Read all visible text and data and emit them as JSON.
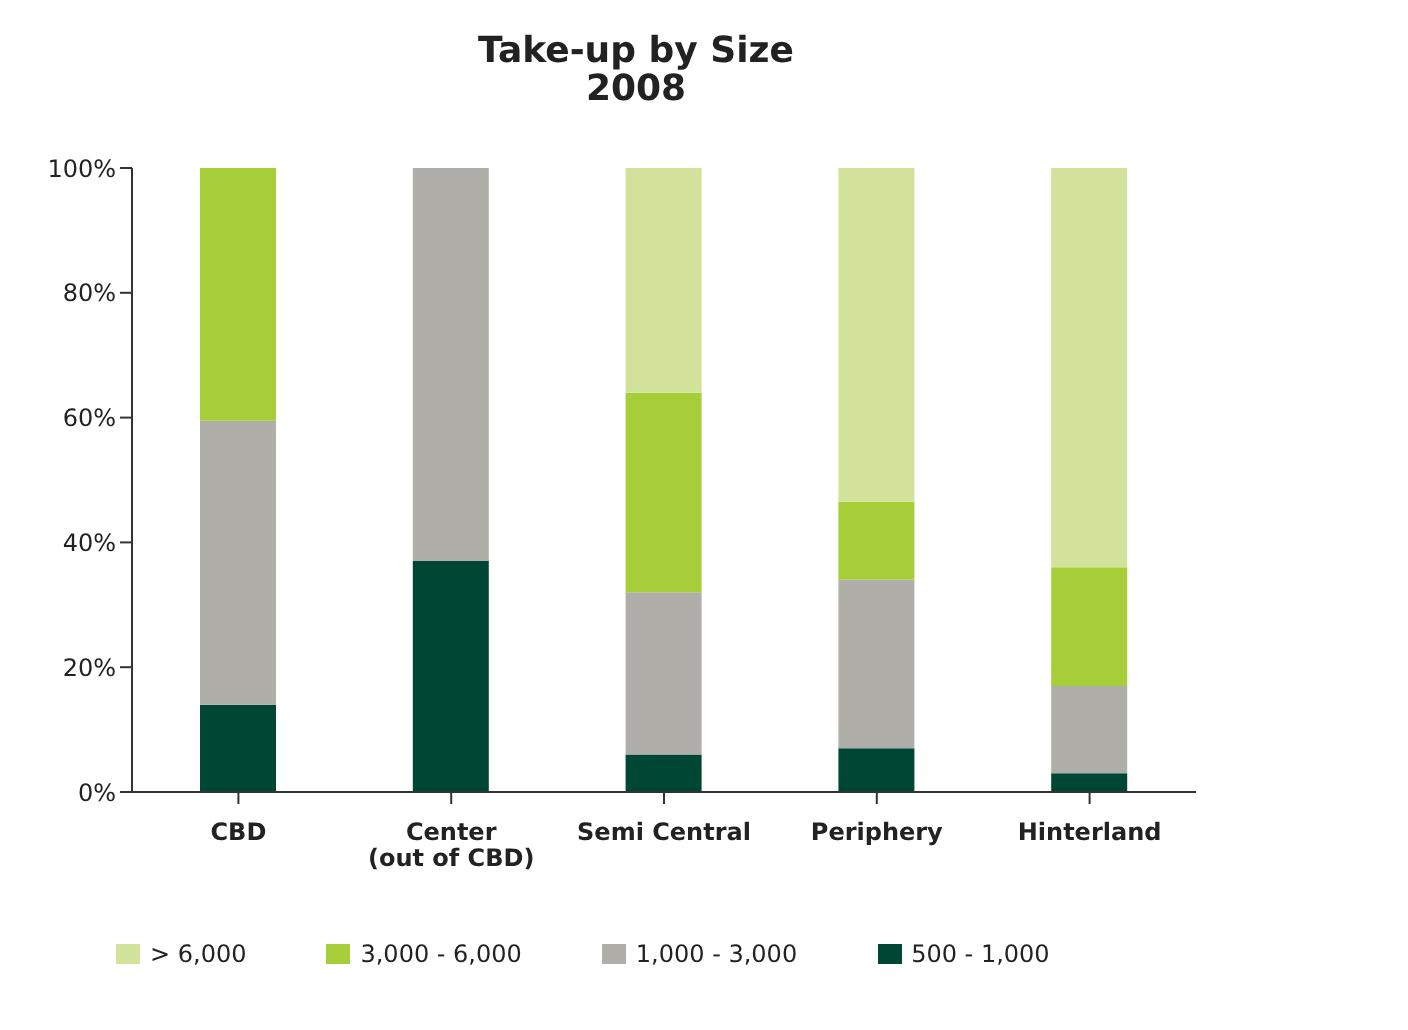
{
  "chart_data": {
    "type": "bar",
    "stacked": true,
    "title": "Take-up by Size",
    "subtitle": "2008",
    "categories": [
      "CBD",
      "Center\n(out of CBD)",
      "Semi Central",
      "Periphery",
      "Hinterland"
    ],
    "series": [
      {
        "name": "500 - 1,000",
        "color": "#004634",
        "values": [
          14,
          37,
          6,
          7,
          3
        ]
      },
      {
        "name": "1,000 - 3,000",
        "color": "#afaea8",
        "values": [
          45.5,
          63,
          26,
          27,
          14
        ]
      },
      {
        "name": "3,000 - 6,000",
        "color": "#a6ce39",
        "values": [
          40.5,
          0,
          32,
          12.5,
          19
        ]
      },
      {
        "name": "> 6,000",
        "color": "#d2e29b",
        "values": [
          0,
          0,
          36,
          53.5,
          64
        ]
      }
    ],
    "ylim": [
      0,
      100
    ],
    "yticks": [
      {
        "value": 0,
        "label": "0%"
      },
      {
        "value": 20,
        "label": "20%"
      },
      {
        "value": 40,
        "label": "40%"
      },
      {
        "value": 60,
        "label": "60%"
      },
      {
        "value": 80,
        "label": "80%"
      },
      {
        "value": 100,
        "label": "100%"
      }
    ],
    "grid": false,
    "legend": "bottom"
  }
}
